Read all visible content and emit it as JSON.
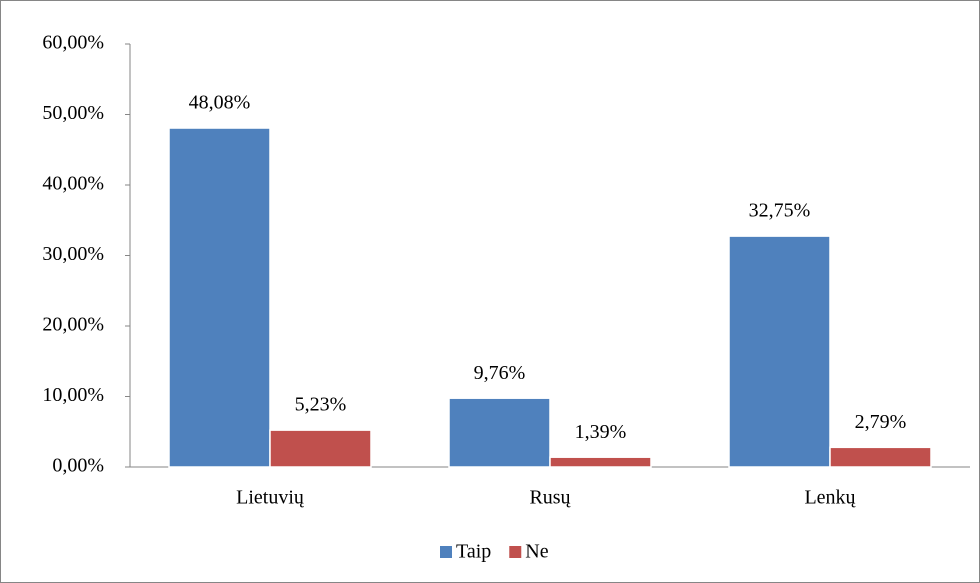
{
  "chart_data": {
    "type": "bar",
    "categories": [
      "Lietuvių",
      "Rusų",
      "Lenkų"
    ],
    "series": [
      {
        "name": "Taip",
        "color": "#4f81bd",
        "values": [
          48.08,
          9.76,
          32.75
        ],
        "value_labels": [
          "48,08%",
          "9,76%",
          "32,75%"
        ]
      },
      {
        "name": "Ne",
        "color": "#c0504d",
        "values": [
          5.23,
          1.39,
          2.79
        ],
        "value_labels": [
          "5,23%",
          "1,39%",
          "2,79%"
        ]
      }
    ],
    "ylim": [
      0,
      60
    ],
    "yticks": [
      {
        "value": 0,
        "label": "0,00%"
      },
      {
        "value": 10,
        "label": "10,00%"
      },
      {
        "value": 20,
        "label": "20,00%"
      },
      {
        "value": 30,
        "label": "30,00%"
      },
      {
        "value": 40,
        "label": "40,00%"
      },
      {
        "value": 50,
        "label": "50,00%"
      },
      {
        "value": 60,
        "label": "60,00%"
      }
    ],
    "grid": false,
    "legend": "bottom"
  }
}
